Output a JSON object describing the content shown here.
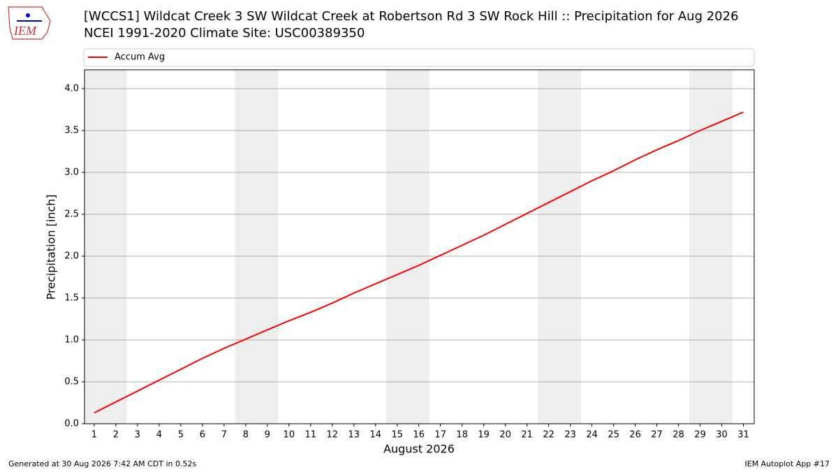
{
  "logo_text": "IEM",
  "chart_data": {
    "type": "line",
    "title": "[WCCS1] Wildcat Creek 3 SW Wildcat Creek at Robertson Rd 3 SW Rock Hill :: Precipitation for Aug 2026",
    "subtitle": "NCEI 1991-2020 Climate Site: USC00389350",
    "xlabel": "August 2026",
    "ylabel": "Precipitation [inch]",
    "x": [
      1,
      2,
      3,
      4,
      5,
      6,
      7,
      8,
      9,
      10,
      11,
      12,
      13,
      14,
      15,
      16,
      17,
      18,
      19,
      20,
      21,
      22,
      23,
      24,
      25,
      26,
      27,
      28,
      29,
      30,
      31
    ],
    "series": [
      {
        "name": "Accum Avg",
        "color": "#ff0000",
        "values": [
          0.13,
          0.26,
          0.39,
          0.52,
          0.65,
          0.78,
          0.9,
          1.01,
          1.12,
          1.23,
          1.33,
          1.44,
          1.56,
          1.67,
          1.78,
          1.89,
          2.01,
          2.13,
          2.25,
          2.38,
          2.51,
          2.64,
          2.77,
          2.9,
          3.02,
          3.15,
          3.27,
          3.38,
          3.5,
          3.61,
          3.72
        ]
      }
    ],
    "xlim": [
      0.55,
      31.5
    ],
    "xticks": [
      1,
      2,
      3,
      4,
      5,
      6,
      7,
      8,
      9,
      10,
      11,
      12,
      13,
      14,
      15,
      16,
      17,
      18,
      19,
      20,
      21,
      22,
      23,
      24,
      25,
      26,
      27,
      28,
      29,
      30,
      31
    ],
    "ylim": [
      0,
      4.225
    ],
    "yticks": [
      {
        "value": 0,
        "label": "0.0"
      },
      {
        "value": 0.5,
        "label": "0.5"
      },
      {
        "value": 1,
        "label": "1.0"
      },
      {
        "value": 1.5,
        "label": "1.5"
      },
      {
        "value": 2,
        "label": "2.0"
      },
      {
        "value": 2.5,
        "label": "2.5"
      },
      {
        "value": 3,
        "label": "3.0"
      },
      {
        "value": 3.5,
        "label": "3.5"
      },
      {
        "value": 4,
        "label": "4.0"
      }
    ],
    "grid": true,
    "shaded_spans": [
      [
        0.5,
        2.5
      ],
      [
        7.5,
        9.5
      ],
      [
        14.5,
        16.5
      ],
      [
        21.5,
        23.5
      ],
      [
        28.5,
        30.5
      ]
    ],
    "shade_color": "#eeeeee",
    "legend": "top",
    "footer_left": "Generated at 30 Aug 2026 7:42 AM CDT in 0.52s",
    "footer_right": "IEM Autoplot App #17"
  }
}
